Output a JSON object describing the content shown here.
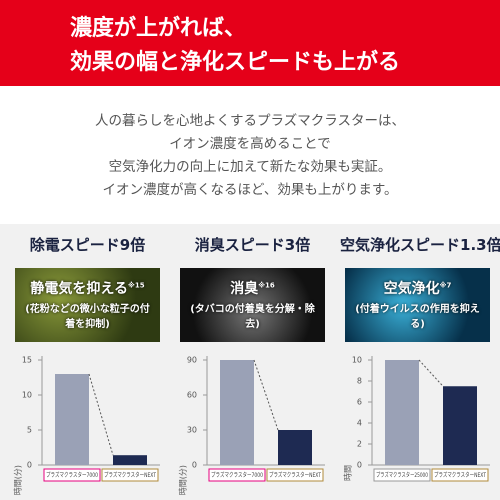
{
  "header": {
    "lines": [
      "濃度が上がれば、",
      "効果の幅と浄化スピードも上がる"
    ]
  },
  "intro": {
    "lines": [
      "人の暮らしを心地よくするプラズマクラスターは、",
      "イオン濃度を高めることで",
      "空気浄化力の向上に加えて新たな効果も実証。",
      "イオン濃度が高くなるほど、効果も上がります。"
    ]
  },
  "chart_data": [
    {
      "type": "bar",
      "title": "除電スピード9倍",
      "image_caption": "静電気を抑える",
      "image_note": "※15",
      "image_subcaption": "(花粉などの微小な粒子の付着を抑制)",
      "y_label": "時間(分)",
      "categories": [
        "プラズマクラスター7000",
        "プラズマクラスターNEXT"
      ],
      "values": [
        13,
        1.4
      ],
      "colors": [
        "#9aa1b6",
        "#1e2a52"
      ],
      "ylim": [
        0,
        15
      ],
      "yticks": [
        0,
        5,
        10,
        15
      ]
    },
    {
      "type": "bar",
      "title": "消臭スピード3倍",
      "image_caption": "消臭",
      "image_note": "※16",
      "image_subcaption": "(タバコの付着臭を分解・除去)",
      "y_label": "時間(分)",
      "categories": [
        "プラズマクラスター7000",
        "プラズマクラスターNEXT"
      ],
      "values": [
        90,
        30
      ],
      "colors": [
        "#9aa1b6",
        "#1e2a52"
      ],
      "ylim": [
        0,
        90
      ],
      "yticks": [
        0,
        30,
        60,
        90
      ]
    },
    {
      "type": "bar",
      "title": "空気浄化スピード1.3倍",
      "image_caption": "空気浄化",
      "image_note": "※7",
      "image_subcaption": "(付着ウイルスの作用を抑える)",
      "y_label": "時間",
      "categories": [
        "プラズマクラスター25000",
        "プラズマクラスターNEXT"
      ],
      "values": [
        10,
        7.5
      ],
      "colors": [
        "#9aa1b6",
        "#1e2a52"
      ],
      "ylim": [
        0,
        10
      ],
      "yticks": [
        0,
        2,
        4,
        6,
        8,
        10
      ]
    }
  ]
}
